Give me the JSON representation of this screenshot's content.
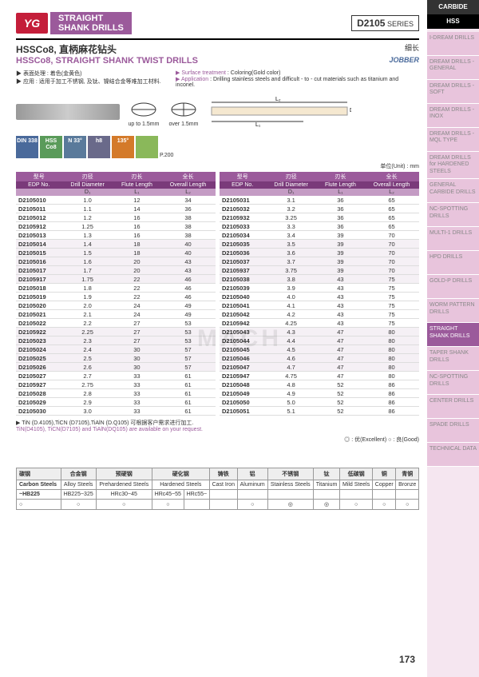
{
  "tabs": {
    "carbide": "CARBIDE",
    "hss": "HSS"
  },
  "logo": "YG",
  "title_line1": "STRAIGHT",
  "title_line2": "SHANK DRILLS",
  "series_label": "SERIES",
  "series_code": "D2105",
  "subtitle_cn": "HSSCo8, 直柄麻花钻头",
  "subtitle_en": "HSSCo8, STRAIGHT SHANK TWIST DRILLS",
  "length_cn": "细长",
  "jobber": "JOBBER",
  "info_left": [
    "▶ 表面处理 : 着色(金黄色)",
    "▶ 应用       : 适用于加工不锈钢, 及钛、镍结合金等难加工材料."
  ],
  "info_right_labels": [
    "▶ Surface treatment",
    "▶ Application"
  ],
  "info_right_vals": [
    ": Coloring(Gold color)",
    ": Drilling stainless steels and difficult - to - cut materials such as titanium and inconel."
  ],
  "diag_labels": [
    "up to 1.5mm",
    "over 1.5mm"
  ],
  "badges": [
    "DIN 338",
    "HSS Co8",
    "N 33°",
    "h8",
    "135°",
    ""
  ],
  "badge_p": "P.200",
  "unit": "单位(Unit) : mm",
  "tbl_hdr_cn": [
    "型号",
    "刃径",
    "刃长",
    "全长"
  ],
  "tbl_hdr_en": [
    "EDP No.",
    "Drill Diameter",
    "Flute Length",
    "Overall Length"
  ],
  "tbl_hdr_sym": [
    "",
    "D₁",
    "L₁",
    "L₂"
  ],
  "left_rows": [
    [
      "D2105010",
      "1.0",
      "12",
      "34"
    ],
    [
      "D2105011",
      "1.1",
      "14",
      "36"
    ],
    [
      "D2105012",
      "1.2",
      "16",
      "38"
    ],
    [
      "D2105912",
      "1.25",
      "16",
      "38"
    ],
    [
      "D2105013",
      "1.3",
      "16",
      "38"
    ],
    [
      "D2105014",
      "1.4",
      "18",
      "40"
    ],
    [
      "D2105015",
      "1.5",
      "18",
      "40"
    ],
    [
      "D2105016",
      "1.6",
      "20",
      "43"
    ],
    [
      "D2105017",
      "1.7",
      "20",
      "43"
    ],
    [
      "D2105917",
      "1.75",
      "22",
      "46"
    ],
    [
      "D2105018",
      "1.8",
      "22",
      "46"
    ],
    [
      "D2105019",
      "1.9",
      "22",
      "46"
    ],
    [
      "D2105020",
      "2.0",
      "24",
      "49"
    ],
    [
      "D2105021",
      "2.1",
      "24",
      "49"
    ],
    [
      "D2105022",
      "2.2",
      "27",
      "53"
    ],
    [
      "D2105922",
      "2.25",
      "27",
      "53"
    ],
    [
      "D2105023",
      "2.3",
      "27",
      "53"
    ],
    [
      "D2105024",
      "2.4",
      "30",
      "57"
    ],
    [
      "D2105025",
      "2.5",
      "30",
      "57"
    ],
    [
      "D2105026",
      "2.6",
      "30",
      "57"
    ],
    [
      "D2105027",
      "2.7",
      "33",
      "61"
    ],
    [
      "D2105927",
      "2.75",
      "33",
      "61"
    ],
    [
      "D2105028",
      "2.8",
      "33",
      "61"
    ],
    [
      "D2105029",
      "2.9",
      "33",
      "61"
    ],
    [
      "D2105030",
      "3.0",
      "33",
      "61"
    ]
  ],
  "right_rows": [
    [
      "D2105031",
      "3.1",
      "36",
      "65"
    ],
    [
      "D2105032",
      "3.2",
      "36",
      "65"
    ],
    [
      "D2105932",
      "3.25",
      "36",
      "65"
    ],
    [
      "D2105033",
      "3.3",
      "36",
      "65"
    ],
    [
      "D2105034",
      "3.4",
      "39",
      "70"
    ],
    [
      "D2105035",
      "3.5",
      "39",
      "70"
    ],
    [
      "D2105036",
      "3.6",
      "39",
      "70"
    ],
    [
      "D2105037",
      "3.7",
      "39",
      "70"
    ],
    [
      "D2105937",
      "3.75",
      "39",
      "70"
    ],
    [
      "D2105038",
      "3.8",
      "43",
      "75"
    ],
    [
      "D2105039",
      "3.9",
      "43",
      "75"
    ],
    [
      "D2105040",
      "4.0",
      "43",
      "75"
    ],
    [
      "D2105041",
      "4.1",
      "43",
      "75"
    ],
    [
      "D2105042",
      "4.2",
      "43",
      "75"
    ],
    [
      "D2105942",
      "4.25",
      "43",
      "75"
    ],
    [
      "D2105043",
      "4.3",
      "47",
      "80"
    ],
    [
      "D2105044",
      "4.4",
      "47",
      "80"
    ],
    [
      "D2105045",
      "4.5",
      "47",
      "80"
    ],
    [
      "D2105046",
      "4.6",
      "47",
      "80"
    ],
    [
      "D2105047",
      "4.7",
      "47",
      "80"
    ],
    [
      "D2105947",
      "4.75",
      "47",
      "80"
    ],
    [
      "D2105048",
      "4.8",
      "52",
      "86"
    ],
    [
      "D2105049",
      "4.9",
      "52",
      "86"
    ],
    [
      "D2105050",
      "5.0",
      "52",
      "86"
    ],
    [
      "D2105051",
      "5.1",
      "52",
      "86"
    ]
  ],
  "note": "▶ TiN (D.4105),TiCN (D7105),TiAlN (D.Q105) 可根据客户需求进行加工.",
  "note2": "TiN(D4105), TiCN(D7105) and TiAlN(DQ105) are available on your request.",
  "legend": "◎ : 优(Excellent)    ○ : 良(Good)",
  "mat_hdr_cn": [
    "碳钢",
    "合金钢",
    "预硬钢",
    "硬化钢",
    "铸铁",
    "铝",
    "不锈钢",
    "钛",
    "低碳钢",
    "铜",
    "青铜"
  ],
  "mat_hdr_en": [
    "Carbon Steels",
    "Alloy Steels",
    "Prehardened Steels",
    "Hardened Steels",
    "Cast Iron",
    "Aluminum",
    "Stainless Steels",
    "Titanium",
    "Mild Steels",
    "Copper",
    "Bronze"
  ],
  "mat_sub": [
    "~HB225",
    "HB225~325",
    "HRc30~45",
    "HRc45~55",
    "HRc55~",
    "",
    "",
    "",
    "",
    "",
    "",
    ""
  ],
  "mat_vals": [
    "○",
    "○",
    "○",
    "○",
    "",
    "",
    "○",
    "◎",
    "◎",
    "○",
    "○",
    "○"
  ],
  "nav": [
    "I-DREAM DRILLS",
    "DREAM DRILLS -GENERAL",
    "DREAM DRILLS -SOFT",
    "DREAM DRILLS -INOX",
    "DREAM DRILLS -MQL TYPE",
    "DREAM DRILLS for HARDENED STEELS",
    "GENERAL CARBIDE DRILLS",
    "NC-SPOTTING DRILLS",
    "MULTI-1 DRILLS",
    "HPD DRILLS",
    "GOLD-P DRILLS",
    "WORM PATTERN DRILLS",
    "STRAIGHT SHANK DRILLS",
    "TAPER SHANK DRILLS",
    "NC-SPOTTING DRILLS",
    "CENTER DRILLS",
    "SPADE DRILLS",
    "TECHNICAL DATA"
  ],
  "nav_active": 12,
  "pagenum": "173",
  "watermark": "MACH"
}
